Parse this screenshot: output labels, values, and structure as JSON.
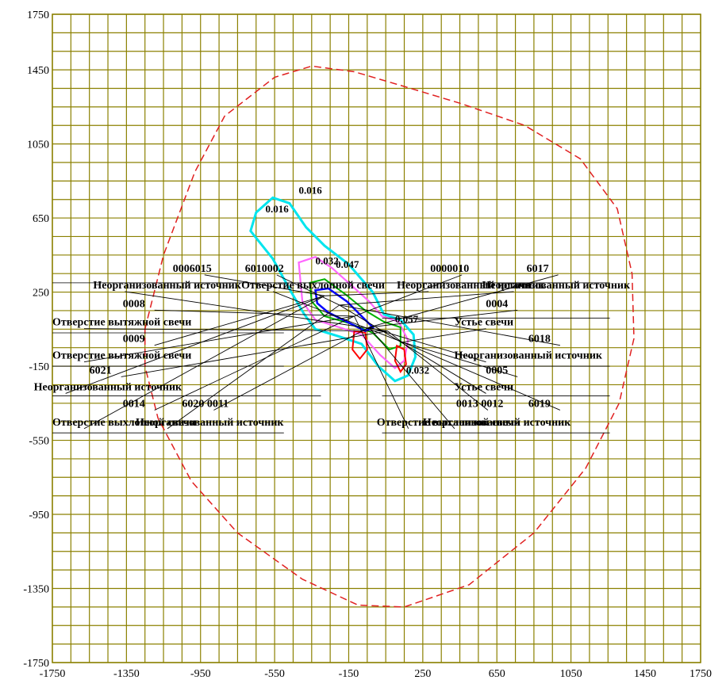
{
  "map": {
    "extent": {
      "xmin": -1750,
      "xmax": 1750,
      "ymin": -1750,
      "ymax": 1750
    },
    "grid": true,
    "colors": {
      "background": "#ffffff",
      "grid": "#8b8000",
      "zone_boundary": "#e02020",
      "isoline_016": "#00e5ee",
      "isoline_032": "#ff66ff",
      "isoline_047": "#ff0000",
      "isoline_mid": "#00b000",
      "isoline_inner": "#0000ff",
      "leader": "#000000"
    },
    "x_ticks": [
      "-1750",
      "-1350",
      "-950",
      "-550",
      "-150",
      "250",
      "650",
      "1050",
      "1450",
      "1750"
    ],
    "y_ticks": [
      "1750",
      "1450",
      "1050",
      "650",
      "250",
      "-150",
      "-550",
      "-950",
      "-1350",
      "-1750"
    ],
    "isoline_labels": [
      {
        "text": "0.016",
        "x": -420,
        "y": 780
      },
      {
        "text": "0.016",
        "x": -600,
        "y": 680
      },
      {
        "text": "0.032",
        "x": -330,
        "y": 400
      },
      {
        "text": "0.047",
        "x": -220,
        "y": 380
      },
      {
        "text": "0.057",
        "x": 100,
        "y": 85
      },
      {
        "text": "0.032",
        "x": 160,
        "y": -190
      }
    ],
    "source_labels": [
      {
        "text": "0006015",
        "x": -1100,
        "y": 360
      },
      {
        "text": "6010002",
        "x": -710,
        "y": 360
      },
      {
        "text": "0000010",
        "x": 290,
        "y": 360
      },
      {
        "text": "6017",
        "x": 810,
        "y": 360
      },
      {
        "text": "Неорганизованный источник",
        "x": -1530,
        "y": 270
      },
      {
        "text": "Отверстие выхлопной свечи",
        "x": -730,
        "y": 270
      },
      {
        "text": "Неорганизованный источник",
        "x": 110,
        "y": 270
      },
      {
        "text": "Неорганизованный источник",
        "x": 570,
        "y": 270
      },
      {
        "text": "0008",
        "x": -1370,
        "y": 170
      },
      {
        "text": "0004",
        "x": 590,
        "y": 170
      },
      {
        "text": "Отверстие вытяжной свечи",
        "x": -1750,
        "y": 70
      },
      {
        "text": "Устье свечи",
        "x": 420,
        "y": 70
      },
      {
        "text": "0009",
        "x": -1370,
        "y": -20
      },
      {
        "text": "6018",
        "x": 820,
        "y": -20
      },
      {
        "text": "Отверстие вытяжной свечи",
        "x": -1750,
        "y": -110
      },
      {
        "text": "Неорганизованный источник",
        "x": 420,
        "y": -110
      },
      {
        "text": "6021",
        "x": -1550,
        "y": -190
      },
      {
        "text": "0005",
        "x": 590,
        "y": -190
      },
      {
        "text": "Неорганизованный источник",
        "x": -1850,
        "y": -280
      },
      {
        "text": "Устье свечи",
        "x": 420,
        "y": -280
      },
      {
        "text": "0014",
        "x": -1370,
        "y": -370
      },
      {
        "text": "6020 0011",
        "x": -1050,
        "y": -370
      },
      {
        "text": "0013 0012",
        "x": 430,
        "y": -370
      },
      {
        "text": "6019",
        "x": 820,
        "y": -370
      },
      {
        "text": "Отверстие выхлопной свечи",
        "x": -1750,
        "y": -470
      },
      {
        "text": "Неорганизованный источник",
        "x": -1300,
        "y": -470
      },
      {
        "text": "Отверстие выхлопной свечи",
        "x": 1,
        "y": -470
      },
      {
        "text": "Неорганизованный источник",
        "x": 250,
        "y": -470
      }
    ]
  }
}
